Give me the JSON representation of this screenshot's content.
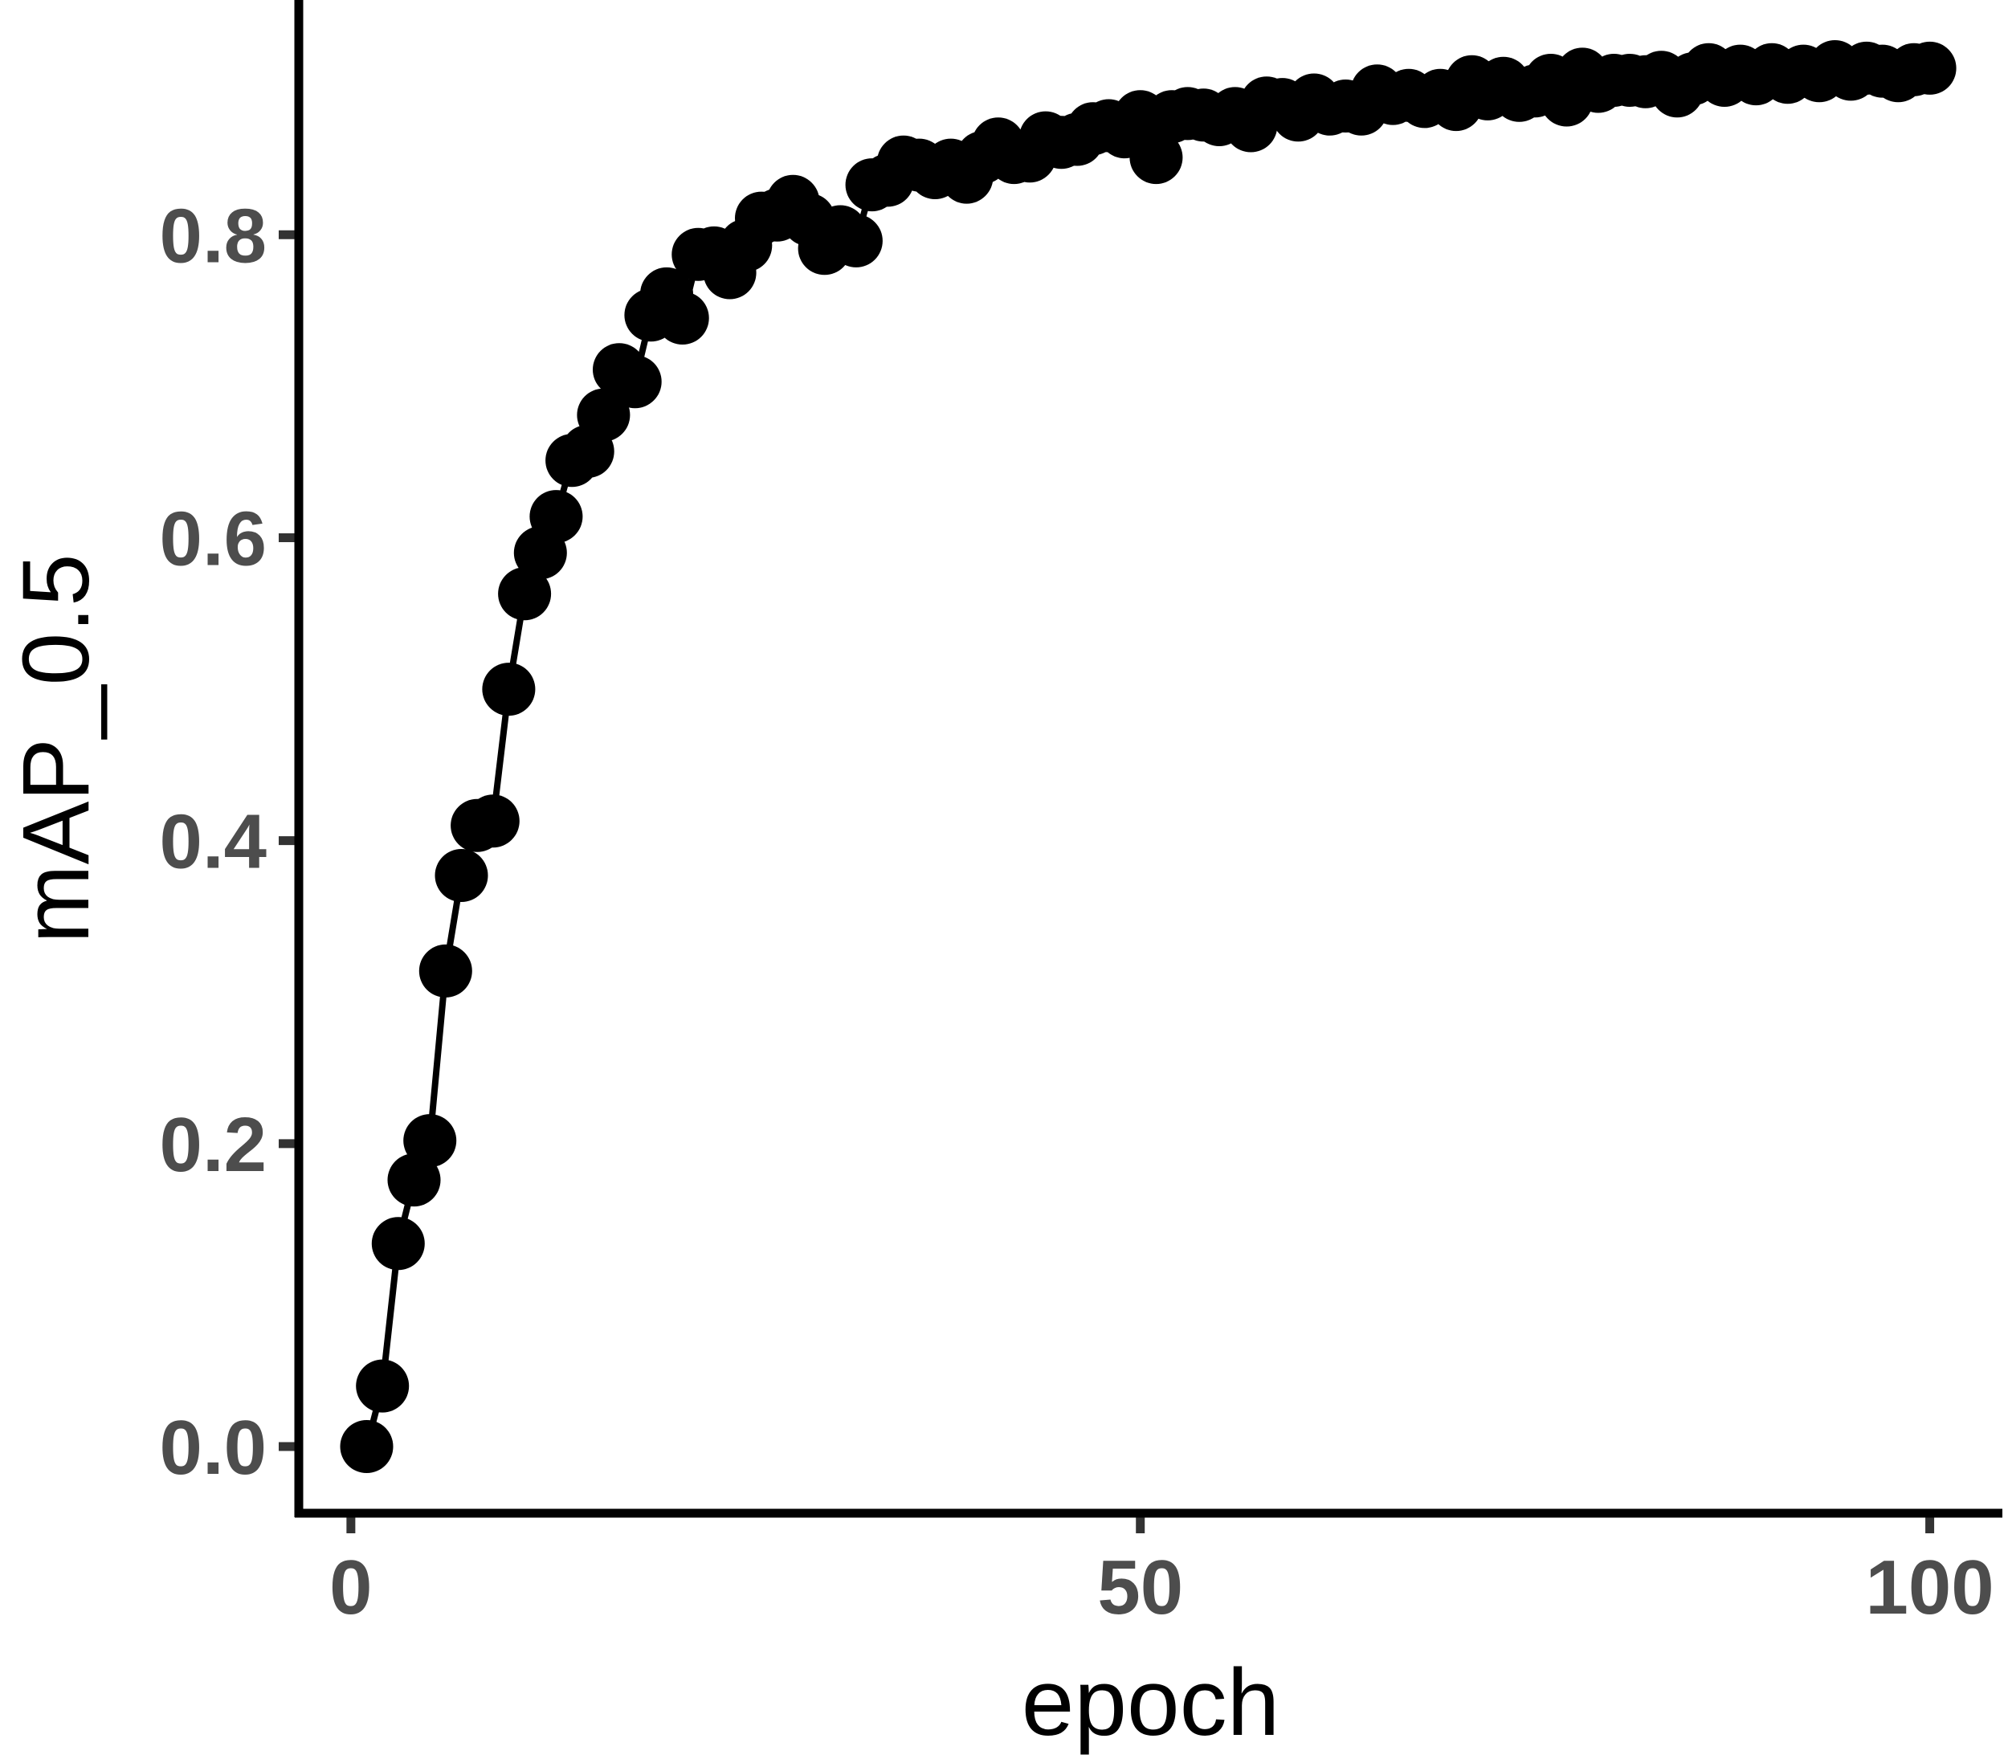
{
  "chart_data": {
    "type": "line",
    "title": "",
    "xlabel": "epoch",
    "ylabel": "mAP_0.5",
    "xlim": [
      -3.3,
      104.6
    ],
    "ylim": [
      -0.044,
      0.955
    ],
    "x_ticks": [
      0,
      50,
      100
    ],
    "x_tick_labels": [
      "0",
      "50",
      "100"
    ],
    "y_ticks": [
      0.0,
      0.2,
      0.4,
      0.6,
      0.8
    ],
    "y_tick_labels": [
      "0.0",
      "0.2",
      "0.4",
      "0.6",
      "0.8"
    ],
    "grid": false,
    "legend": "none",
    "colors": {
      "series": "#000000",
      "axis_line": "#000000",
      "tick_label": "#4d4d4d",
      "tick_mark": "#333333",
      "axis_title": "#000000",
      "background": "#ffffff"
    },
    "series": [
      {
        "marker": "circle",
        "x": [
          1,
          2,
          3,
          4,
          5,
          6,
          7,
          8,
          9,
          10,
          11,
          12,
          13,
          14,
          15,
          16,
          17,
          18,
          19,
          20,
          21,
          22,
          23,
          24,
          25,
          26,
          27,
          28,
          29,
          30,
          31,
          32,
          33,
          34,
          35,
          36,
          37,
          38,
          39,
          40,
          41,
          42,
          43,
          44,
          45,
          46,
          47,
          48,
          49,
          50,
          51,
          52,
          53,
          54,
          55,
          56,
          57,
          58,
          59,
          60,
          61,
          62,
          63,
          64,
          65,
          66,
          67,
          68,
          69,
          70,
          71,
          72,
          73,
          74,
          75,
          76,
          77,
          78,
          79,
          80,
          81,
          82,
          83,
          84,
          85,
          86,
          87,
          88,
          89,
          90,
          91,
          92,
          93,
          94,
          95,
          96,
          97,
          98,
          99,
          100
        ],
        "values": [
          0.0,
          0.04,
          0.134,
          0.176,
          0.202,
          0.314,
          0.377,
          0.41,
          0.413,
          0.5,
          0.563,
          0.59,
          0.614,
          0.651,
          0.657,
          0.681,
          0.711,
          0.703,
          0.747,
          0.761,
          0.745,
          0.787,
          0.788,
          0.775,
          0.793,
          0.811,
          0.813,
          0.822,
          0.81,
          0.791,
          0.802,
          0.796,
          0.833,
          0.836,
          0.848,
          0.846,
          0.841,
          0.846,
          0.838,
          0.851,
          0.86,
          0.851,
          0.852,
          0.864,
          0.861,
          0.863,
          0.87,
          0.872,
          0.868,
          0.878,
          0.851,
          0.878,
          0.88,
          0.879,
          0.876,
          0.88,
          0.872,
          0.887,
          0.886,
          0.879,
          0.889,
          0.883,
          0.885,
          0.883,
          0.895,
          0.89,
          0.892,
          0.888,
          0.892,
          0.886,
          0.901,
          0.893,
          0.9,
          0.892,
          0.895,
          0.902,
          0.889,
          0.906,
          0.898,
          0.902,
          0.902,
          0.901,
          0.904,
          0.895,
          0.903,
          0.909,
          0.902,
          0.908,
          0.903,
          0.909,
          0.904,
          0.908,
          0.905,
          0.911,
          0.906,
          0.91,
          0.908,
          0.905,
          0.909,
          0.91
        ]
      }
    ]
  }
}
